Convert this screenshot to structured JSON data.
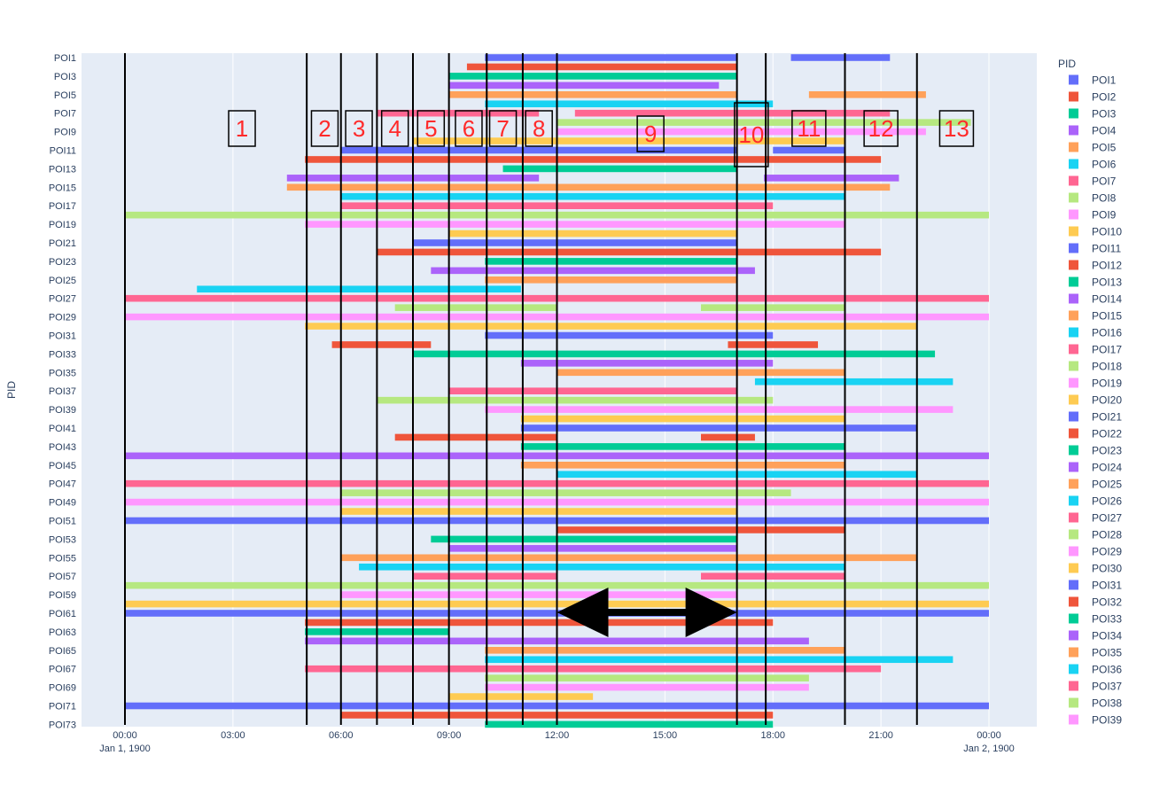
{
  "chart_data": {
    "type": "timeline",
    "yaxis_title": "PID",
    "legend_title": "PID",
    "x_ticks": [
      {
        "label": "00:00",
        "sub": "Jan 1, 1900",
        "h": 0
      },
      {
        "label": "03:00",
        "sub": "",
        "h": 3
      },
      {
        "label": "06:00",
        "sub": "",
        "h": 6
      },
      {
        "label": "09:00",
        "sub": "",
        "h": 9
      },
      {
        "label": "12:00",
        "sub": "",
        "h": 12
      },
      {
        "label": "15:00",
        "sub": "",
        "h": 15
      },
      {
        "label": "18:00",
        "sub": "",
        "h": 18
      },
      {
        "label": "21:00",
        "sub": "",
        "h": 21
      },
      {
        "label": "00:00",
        "sub": "Jan 2, 1900",
        "h": 24
      }
    ],
    "y_tick_labels": [
      "POI1",
      "POI3",
      "POI5",
      "POI7",
      "POI9",
      "POI11",
      "POI13",
      "POI15",
      "POI17",
      "POI19",
      "POI21",
      "POI23",
      "POI25",
      "POI27",
      "POI29",
      "POI31",
      "POI33",
      "POI35",
      "POI37",
      "POI39",
      "POI41",
      "POI43",
      "POI45",
      "POI47",
      "POI49",
      "POI51",
      "POI53",
      "POI55",
      "POI57",
      "POI59",
      "POI61",
      "POI63",
      "POI65",
      "POI67",
      "POI69",
      "POI71",
      "POI73"
    ],
    "legend": [
      {
        "name": "POI1",
        "color": "#636efa"
      },
      {
        "name": "POI2",
        "color": "#ef553b"
      },
      {
        "name": "POI3",
        "color": "#00cc96"
      },
      {
        "name": "POI4",
        "color": "#ab63fa"
      },
      {
        "name": "POI5",
        "color": "#ffa15a"
      },
      {
        "name": "POI6",
        "color": "#19d3f3"
      },
      {
        "name": "POI7",
        "color": "#ff6692"
      },
      {
        "name": "POI8",
        "color": "#b6e880"
      },
      {
        "name": "POI9",
        "color": "#ff97ff"
      },
      {
        "name": "POI10",
        "color": "#fecb52"
      },
      {
        "name": "POI11",
        "color": "#636efa"
      },
      {
        "name": "POI12",
        "color": "#ef553b"
      },
      {
        "name": "POI13",
        "color": "#00cc96"
      },
      {
        "name": "POI14",
        "color": "#ab63fa"
      },
      {
        "name": "POI15",
        "color": "#ffa15a"
      },
      {
        "name": "POI16",
        "color": "#19d3f3"
      },
      {
        "name": "POI17",
        "color": "#ff6692"
      },
      {
        "name": "POI18",
        "color": "#b6e880"
      },
      {
        "name": "POI19",
        "color": "#ff97ff"
      },
      {
        "name": "POI20",
        "color": "#fecb52"
      },
      {
        "name": "POI21",
        "color": "#636efa"
      },
      {
        "name": "POI22",
        "color": "#ef553b"
      },
      {
        "name": "POI23",
        "color": "#00cc96"
      },
      {
        "name": "POI24",
        "color": "#ab63fa"
      },
      {
        "name": "POI25",
        "color": "#ffa15a"
      },
      {
        "name": "POI26",
        "color": "#19d3f3"
      },
      {
        "name": "POI27",
        "color": "#ff6692"
      },
      {
        "name": "POI28",
        "color": "#b6e880"
      },
      {
        "name": "POI29",
        "color": "#ff97ff"
      },
      {
        "name": "POI30",
        "color": "#fecb52"
      },
      {
        "name": "POI31",
        "color": "#636efa"
      },
      {
        "name": "POI32",
        "color": "#ef553b"
      },
      {
        "name": "POI33",
        "color": "#00cc96"
      },
      {
        "name": "POI34",
        "color": "#ab63fa"
      },
      {
        "name": "POI35",
        "color": "#ffa15a"
      },
      {
        "name": "POI36",
        "color": "#19d3f3"
      },
      {
        "name": "POI37",
        "color": "#ff6692"
      },
      {
        "name": "POI38",
        "color": "#b6e880"
      },
      {
        "name": "POI39",
        "color": "#ff97ff"
      }
    ],
    "bars": [
      {
        "row": 0,
        "color": "#636efa",
        "start": 10,
        "end": 17
      },
      {
        "row": 0,
        "color": "#636efa",
        "start": 18.5,
        "end": 21.25
      },
      {
        "row": 1,
        "color": "#ef553b",
        "start": 9.5,
        "end": 17
      },
      {
        "row": 2,
        "color": "#00cc96",
        "start": 9,
        "end": 17
      },
      {
        "row": 3,
        "color": "#ab63fa",
        "start": 9,
        "end": 16.5
      },
      {
        "row": 4,
        "color": "#ffa15a",
        "start": 9,
        "end": 17
      },
      {
        "row": 4,
        "color": "#ffa15a",
        "start": 19,
        "end": 22.25
      },
      {
        "row": 5,
        "color": "#19d3f3",
        "start": 10,
        "end": 18
      },
      {
        "row": 6,
        "color": "#ff6692",
        "start": 7,
        "end": 11.5
      },
      {
        "row": 6,
        "color": "#ff6692",
        "start": 12.5,
        "end": 21.25
      },
      {
        "row": 7,
        "color": "#b6e880",
        "start": 12,
        "end": 23.5
      },
      {
        "row": 8,
        "color": "#ff97ff",
        "start": 12,
        "end": 22.25
      },
      {
        "row": 9,
        "color": "#fecb52",
        "start": 8,
        "end": 20
      },
      {
        "row": 10,
        "color": "#636efa",
        "start": 6,
        "end": 17
      },
      {
        "row": 10,
        "color": "#636efa",
        "start": 18,
        "end": 20
      },
      {
        "row": 11,
        "color": "#ef553b",
        "start": 5,
        "end": 21
      },
      {
        "row": 12,
        "color": "#00cc96",
        "start": 10.5,
        "end": 17
      },
      {
        "row": 13,
        "color": "#ab63fa",
        "start": 4.5,
        "end": 11.5
      },
      {
        "row": 13,
        "color": "#ab63fa",
        "start": 17.75,
        "end": 21.5
      },
      {
        "row": 14,
        "color": "#ffa15a",
        "start": 4.5,
        "end": 21.25
      },
      {
        "row": 15,
        "color": "#19d3f3",
        "start": 6,
        "end": 20
      },
      {
        "row": 16,
        "color": "#ff6692",
        "start": 6,
        "end": 18
      },
      {
        "row": 17,
        "color": "#b6e880",
        "start": 0,
        "end": 24
      },
      {
        "row": 18,
        "color": "#ff97ff",
        "start": 5,
        "end": 20
      },
      {
        "row": 19,
        "color": "#fecb52",
        "start": 9,
        "end": 17
      },
      {
        "row": 20,
        "color": "#636efa",
        "start": 8,
        "end": 17
      },
      {
        "row": 21,
        "color": "#ef553b",
        "start": 7,
        "end": 21
      },
      {
        "row": 22,
        "color": "#00cc96",
        "start": 10,
        "end": 17
      },
      {
        "row": 23,
        "color": "#ab63fa",
        "start": 8.5,
        "end": 17.5
      },
      {
        "row": 24,
        "color": "#ffa15a",
        "start": 10,
        "end": 17
      },
      {
        "row": 25,
        "color": "#19d3f3",
        "start": 2,
        "end": 11
      },
      {
        "row": 26,
        "color": "#ff6692",
        "start": 0,
        "end": 24
      },
      {
        "row": 27,
        "color": "#b6e880",
        "start": 7.5,
        "end": 12
      },
      {
        "row": 27,
        "color": "#b6e880",
        "start": 16,
        "end": 20
      },
      {
        "row": 28,
        "color": "#ff97ff",
        "start": 0,
        "end": 24
      },
      {
        "row": 29,
        "color": "#fecb52",
        "start": 5,
        "end": 22
      },
      {
        "row": 30,
        "color": "#636efa",
        "start": 10,
        "end": 18
      },
      {
        "row": 31,
        "color": "#ef553b",
        "start": 5.75,
        "end": 8.5
      },
      {
        "row": 31,
        "color": "#ef553b",
        "start": 16.75,
        "end": 19.25
      },
      {
        "row": 32,
        "color": "#00cc96",
        "start": 8,
        "end": 22.5
      },
      {
        "row": 33,
        "color": "#ab63fa",
        "start": 11,
        "end": 18
      },
      {
        "row": 34,
        "color": "#ffa15a",
        "start": 12,
        "end": 20
      },
      {
        "row": 35,
        "color": "#19d3f3",
        "start": 17.5,
        "end": 23
      },
      {
        "row": 36,
        "color": "#ff6692",
        "start": 9,
        "end": 17
      },
      {
        "row": 37,
        "color": "#b6e880",
        "start": 7,
        "end": 18
      },
      {
        "row": 38,
        "color": "#ff97ff",
        "start": 10,
        "end": 23
      },
      {
        "row": 39,
        "color": "#fecb52",
        "start": 11,
        "end": 20
      },
      {
        "row": 40,
        "color": "#636efa",
        "start": 11,
        "end": 22
      },
      {
        "row": 41,
        "color": "#ef553b",
        "start": 7.5,
        "end": 12
      },
      {
        "row": 41,
        "color": "#ef553b",
        "start": 16,
        "end": 17.5
      },
      {
        "row": 42,
        "color": "#00cc96",
        "start": 11,
        "end": 20
      },
      {
        "row": 43,
        "color": "#ab63fa",
        "start": 0,
        "end": 24
      },
      {
        "row": 44,
        "color": "#ffa15a",
        "start": 11,
        "end": 20
      },
      {
        "row": 45,
        "color": "#19d3f3",
        "start": 12,
        "end": 22
      },
      {
        "row": 46,
        "color": "#ff6692",
        "start": 0,
        "end": 24
      },
      {
        "row": 47,
        "color": "#b6e880",
        "start": 6,
        "end": 18.5
      },
      {
        "row": 48,
        "color": "#ff97ff",
        "start": 0,
        "end": 24
      },
      {
        "row": 49,
        "color": "#fecb52",
        "start": 6,
        "end": 17
      },
      {
        "row": 50,
        "color": "#636efa",
        "start": 0,
        "end": 24
      },
      {
        "row": 51,
        "color": "#ef553b",
        "start": 12,
        "end": 20
      },
      {
        "row": 52,
        "color": "#00cc96",
        "start": 8.5,
        "end": 17
      },
      {
        "row": 53,
        "color": "#ab63fa",
        "start": 9,
        "end": 17
      },
      {
        "row": 54,
        "color": "#ffa15a",
        "start": 6,
        "end": 22
      },
      {
        "row": 55,
        "color": "#19d3f3",
        "start": 6.5,
        "end": 20
      },
      {
        "row": 56,
        "color": "#ff6692",
        "start": 8,
        "end": 12
      },
      {
        "row": 56,
        "color": "#ff6692",
        "start": 16,
        "end": 20
      },
      {
        "row": 57,
        "color": "#b6e880",
        "start": 0,
        "end": 24
      },
      {
        "row": 58,
        "color": "#ff97ff",
        "start": 6,
        "end": 17
      },
      {
        "row": 59,
        "color": "#fecb52",
        "start": 0,
        "end": 24
      },
      {
        "row": 60,
        "color": "#636efa",
        "start": 0,
        "end": 24
      },
      {
        "row": 61,
        "color": "#ef553b",
        "start": 5,
        "end": 18
      },
      {
        "row": 62,
        "color": "#00cc96",
        "start": 5,
        "end": 9
      },
      {
        "row": 63,
        "color": "#ab63fa",
        "start": 5,
        "end": 19
      },
      {
        "row": 64,
        "color": "#ffa15a",
        "start": 10,
        "end": 20
      },
      {
        "row": 65,
        "color": "#19d3f3",
        "start": 10,
        "end": 23
      },
      {
        "row": 66,
        "color": "#ff6692",
        "start": 5,
        "end": 21
      },
      {
        "row": 67,
        "color": "#b6e880",
        "start": 10,
        "end": 19
      },
      {
        "row": 68,
        "color": "#ff97ff",
        "start": 10,
        "end": 19
      },
      {
        "row": 69,
        "color": "#fecb52",
        "start": 9,
        "end": 13
      },
      {
        "row": 70,
        "color": "#636efa",
        "start": 0,
        "end": 24
      },
      {
        "row": 71,
        "color": "#ef553b",
        "start": 6,
        "end": 18
      },
      {
        "row": 72,
        "color": "#00cc96",
        "start": 10,
        "end": 18
      }
    ],
    "divider_hours": [
      0,
      5.05,
      6,
      7,
      8,
      9,
      10.05,
      11.05,
      12,
      17,
      17.8,
      20,
      22
    ],
    "zones": [
      {
        "label": "1",
        "h": 3.25
      },
      {
        "label": "2",
        "h": 5.55
      },
      {
        "label": "3",
        "h": 6.5
      },
      {
        "label": "4",
        "h": 7.5
      },
      {
        "label": "5",
        "h": 8.5
      },
      {
        "label": "6",
        "h": 9.55
      },
      {
        "label": "7",
        "h": 10.5
      },
      {
        "label": "8",
        "h": 11.5
      },
      {
        "label": "9",
        "h": 14.6
      },
      {
        "label": "10",
        "h": 17.4
      },
      {
        "label": "11",
        "h": 19
      },
      {
        "label": "12",
        "h": 21
      },
      {
        "label": "13",
        "h": 23.1
      }
    ],
    "arrow": {
      "from_h": 12,
      "to_h": 17
    }
  }
}
